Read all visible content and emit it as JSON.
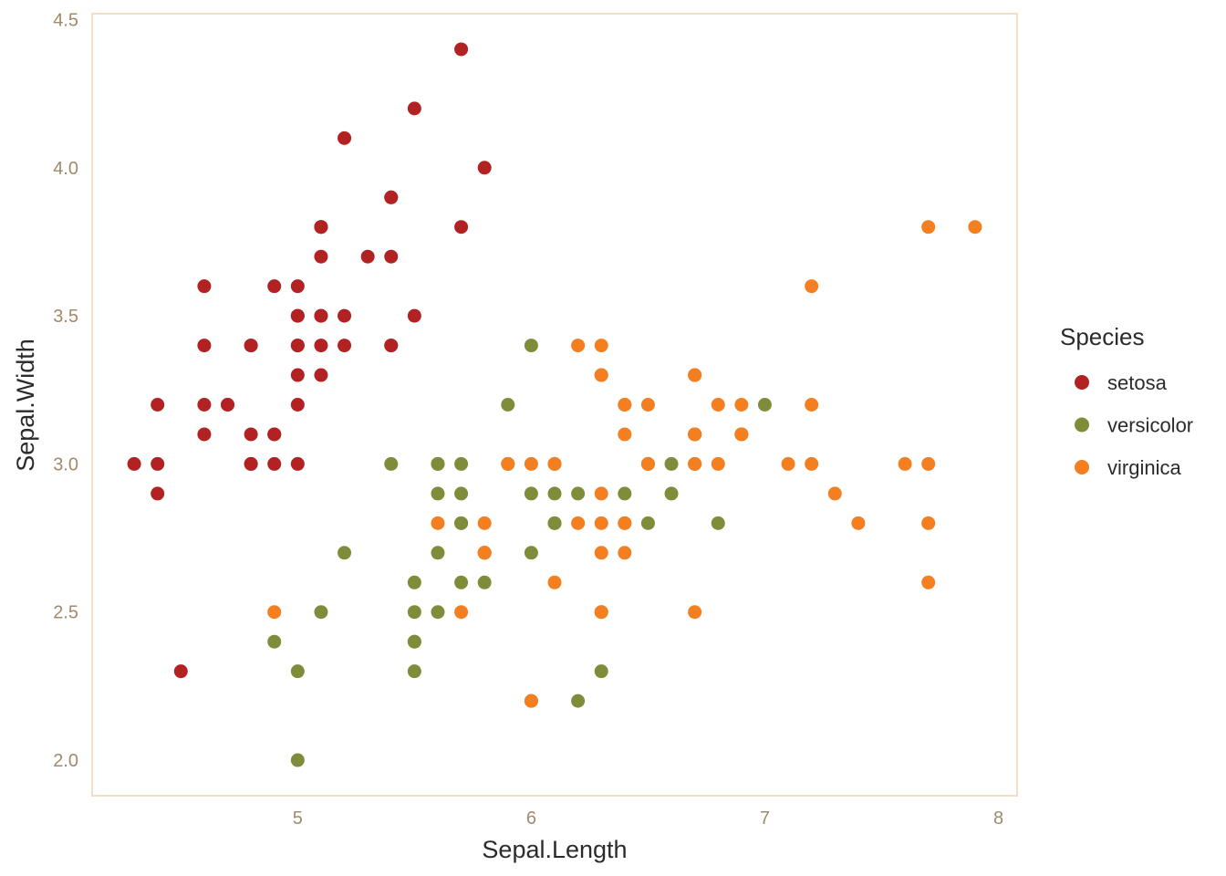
{
  "chart_data": {
    "type": "scatter",
    "title": "",
    "xlabel": "Sepal.Length",
    "ylabel": "Sepal.Width",
    "xlim": [
      4.12,
      8.08
    ],
    "ylim": [
      1.88,
      4.52
    ],
    "x_ticks": [
      {
        "value": 5,
        "label": "5"
      },
      {
        "value": 6,
        "label": "6"
      },
      {
        "value": 7,
        "label": "7"
      },
      {
        "value": 8,
        "label": "8"
      }
    ],
    "y_ticks": [
      {
        "value": 2.0,
        "label": "2.0"
      },
      {
        "value": 2.5,
        "label": "2.5"
      },
      {
        "value": 3.0,
        "label": "3.0"
      },
      {
        "value": 3.5,
        "label": "3.5"
      },
      {
        "value": 4.0,
        "label": "4.0"
      },
      {
        "value": 4.5,
        "label": "4.5"
      }
    ],
    "grid": false,
    "panel_border_color": "#f0dfc0",
    "legend": {
      "title": "Species",
      "placement": "right"
    },
    "series": [
      {
        "name": "setosa",
        "color": "#b22222",
        "points": [
          [
            5.1,
            3.5
          ],
          [
            4.9,
            3.0
          ],
          [
            4.7,
            3.2
          ],
          [
            4.6,
            3.1
          ],
          [
            5.0,
            3.6
          ],
          [
            5.4,
            3.9
          ],
          [
            4.6,
            3.4
          ],
          [
            5.0,
            3.4
          ],
          [
            4.4,
            2.9
          ],
          [
            4.9,
            3.1
          ],
          [
            5.4,
            3.7
          ],
          [
            4.8,
            3.4
          ],
          [
            4.8,
            3.0
          ],
          [
            4.3,
            3.0
          ],
          [
            5.8,
            4.0
          ],
          [
            5.7,
            4.4
          ],
          [
            5.4,
            3.9
          ],
          [
            5.1,
            3.5
          ],
          [
            5.7,
            3.8
          ],
          [
            5.1,
            3.8
          ],
          [
            5.4,
            3.4
          ],
          [
            5.1,
            3.7
          ],
          [
            4.6,
            3.6
          ],
          [
            5.1,
            3.3
          ],
          [
            4.8,
            3.4
          ],
          [
            5.0,
            3.0
          ],
          [
            5.0,
            3.4
          ],
          [
            5.2,
            3.5
          ],
          [
            5.2,
            3.4
          ],
          [
            4.7,
            3.2
          ],
          [
            4.8,
            3.1
          ],
          [
            5.4,
            3.4
          ],
          [
            5.2,
            4.1
          ],
          [
            5.5,
            4.2
          ],
          [
            4.9,
            3.1
          ],
          [
            5.0,
            3.2
          ],
          [
            5.5,
            3.5
          ],
          [
            4.9,
            3.6
          ],
          [
            4.4,
            3.0
          ],
          [
            5.1,
            3.4
          ],
          [
            5.0,
            3.5
          ],
          [
            4.5,
            2.3
          ],
          [
            4.4,
            3.2
          ],
          [
            5.0,
            3.5
          ],
          [
            5.1,
            3.8
          ],
          [
            4.8,
            3.0
          ],
          [
            5.1,
            3.8
          ],
          [
            4.6,
            3.2
          ],
          [
            5.3,
            3.7
          ],
          [
            5.0,
            3.3
          ]
        ]
      },
      {
        "name": "versicolor",
        "color": "#7f8c3a",
        "points": [
          [
            7.0,
            3.2
          ],
          [
            6.4,
            3.2
          ],
          [
            6.9,
            3.1
          ],
          [
            5.5,
            2.3
          ],
          [
            6.5,
            2.8
          ],
          [
            5.7,
            2.8
          ],
          [
            6.3,
            3.3
          ],
          [
            4.9,
            2.4
          ],
          [
            6.6,
            2.9
          ],
          [
            5.2,
            2.7
          ],
          [
            5.0,
            2.0
          ],
          [
            5.9,
            3.0
          ],
          [
            6.0,
            2.2
          ],
          [
            6.1,
            2.9
          ],
          [
            5.6,
            2.9
          ],
          [
            6.7,
            3.1
          ],
          [
            5.6,
            3.0
          ],
          [
            5.8,
            2.7
          ],
          [
            6.2,
            2.2
          ],
          [
            5.6,
            2.5
          ],
          [
            5.9,
            3.2
          ],
          [
            6.1,
            2.8
          ],
          [
            6.3,
            2.5
          ],
          [
            6.1,
            2.8
          ],
          [
            6.4,
            2.9
          ],
          [
            6.6,
            3.0
          ],
          [
            6.8,
            2.8
          ],
          [
            6.7,
            3.0
          ],
          [
            6.0,
            2.9
          ],
          [
            5.7,
            2.6
          ],
          [
            5.5,
            2.4
          ],
          [
            5.5,
            2.4
          ],
          [
            5.8,
            2.7
          ],
          [
            6.0,
            2.7
          ],
          [
            5.4,
            3.0
          ],
          [
            6.0,
            3.4
          ],
          [
            6.7,
            3.1
          ],
          [
            6.3,
            2.3
          ],
          [
            5.6,
            3.0
          ],
          [
            5.5,
            2.5
          ],
          [
            5.5,
            2.6
          ],
          [
            6.1,
            3.0
          ],
          [
            5.8,
            2.6
          ],
          [
            5.0,
            2.3
          ],
          [
            5.6,
            2.7
          ],
          [
            5.7,
            3.0
          ],
          [
            5.7,
            2.9
          ],
          [
            6.2,
            2.9
          ],
          [
            5.1,
            2.5
          ],
          [
            5.7,
            2.8
          ]
        ]
      },
      {
        "name": "virginica",
        "color": "#f47f20",
        "points": [
          [
            6.3,
            3.3
          ],
          [
            5.8,
            2.7
          ],
          [
            7.1,
            3.0
          ],
          [
            6.3,
            2.9
          ],
          [
            6.5,
            3.0
          ],
          [
            7.6,
            3.0
          ],
          [
            4.9,
            2.5
          ],
          [
            7.3,
            2.9
          ],
          [
            6.7,
            2.5
          ],
          [
            7.2,
            3.6
          ],
          [
            6.5,
            3.2
          ],
          [
            6.4,
            2.7
          ],
          [
            6.8,
            3.0
          ],
          [
            5.7,
            2.5
          ],
          [
            5.8,
            2.8
          ],
          [
            6.4,
            3.2
          ],
          [
            6.5,
            3.0
          ],
          [
            7.7,
            3.8
          ],
          [
            7.7,
            2.6
          ],
          [
            6.0,
            2.2
          ],
          [
            6.9,
            3.2
          ],
          [
            5.6,
            2.8
          ],
          [
            7.7,
            2.8
          ],
          [
            6.3,
            2.7
          ],
          [
            6.7,
            3.3
          ],
          [
            7.2,
            3.2
          ],
          [
            6.2,
            2.8
          ],
          [
            6.1,
            3.0
          ],
          [
            6.4,
            2.8
          ],
          [
            7.2,
            3.0
          ],
          [
            7.4,
            2.8
          ],
          [
            7.9,
            3.8
          ],
          [
            6.4,
            2.8
          ],
          [
            6.3,
            2.8
          ],
          [
            6.1,
            2.6
          ],
          [
            7.7,
            3.0
          ],
          [
            6.3,
            3.4
          ],
          [
            6.4,
            3.1
          ],
          [
            6.0,
            3.0
          ],
          [
            6.9,
            3.1
          ],
          [
            6.7,
            3.1
          ],
          [
            6.9,
            3.1
          ],
          [
            5.8,
            2.7
          ],
          [
            6.8,
            3.2
          ],
          [
            6.7,
            3.3
          ],
          [
            6.7,
            3.0
          ],
          [
            6.3,
            2.5
          ],
          [
            6.5,
            3.0
          ],
          [
            6.2,
            3.4
          ],
          [
            5.9,
            3.0
          ]
        ]
      }
    ]
  }
}
